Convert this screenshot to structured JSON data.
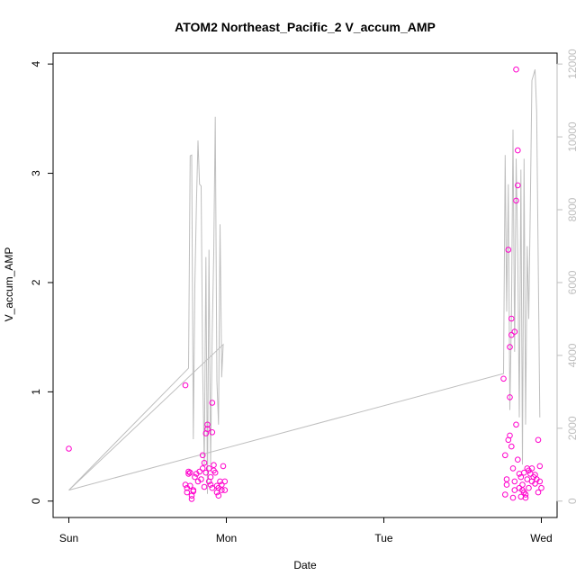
{
  "chart_data": {
    "type": "scatter",
    "title": "ATOM2 Northeast_Pacific_2 V_accum_AMP",
    "xlabel": "Date",
    "ylabel": "V_accum_AMP",
    "x_ticks": [
      "Sun",
      "Mon",
      "Tue",
      "Wed"
    ],
    "x_tick_values": [
      0,
      1,
      2,
      3
    ],
    "xlim": [
      -0.1,
      3.1
    ],
    "ylim": [
      -0.15,
      4.1
    ],
    "y_ticks": [
      0,
      1,
      2,
      3,
      4
    ],
    "y2lim": [
      -450,
      12300
    ],
    "y2_ticks": [
      0,
      2000,
      4000,
      6000,
      8000,
      10000,
      12000
    ],
    "grid": false,
    "colors": {
      "points": "#ff00cc",
      "line": "#bebebe",
      "right_axis": "#bebebe",
      "axes": "#000000"
    },
    "series": [
      {
        "kind": "points",
        "axis": "left",
        "x_unit": "days since Sun",
        "points": [
          [
            0.0,
            0.48
          ],
          [
            0.74,
            1.06
          ],
          [
            0.74,
            0.15
          ],
          [
            0.75,
            0.08
          ],
          [
            0.75,
            0.12
          ],
          [
            0.76,
            0.27
          ],
          [
            0.76,
            0.25
          ],
          [
            0.77,
            0.26
          ],
          [
            0.77,
            0.14
          ],
          [
            0.78,
            0.05
          ],
          [
            0.78,
            0.02
          ],
          [
            0.79,
            0.1
          ],
          [
            0.79,
            0.09
          ],
          [
            0.8,
            0.22
          ],
          [
            0.81,
            0.25
          ],
          [
            0.82,
            0.18
          ],
          [
            0.83,
            0.27
          ],
          [
            0.84,
            0.2
          ],
          [
            0.85,
            0.3
          ],
          [
            0.85,
            0.42
          ],
          [
            0.86,
            0.35
          ],
          [
            0.86,
            0.13
          ],
          [
            0.87,
            0.26
          ],
          [
            0.87,
            0.62
          ],
          [
            0.88,
            0.7
          ],
          [
            0.88,
            0.66
          ],
          [
            0.89,
            0.18
          ],
          [
            0.89,
            0.3
          ],
          [
            0.9,
            0.15
          ],
          [
            0.9,
            0.22
          ],
          [
            0.91,
            0.12
          ],
          [
            0.91,
            0.9
          ],
          [
            0.91,
            0.63
          ],
          [
            0.92,
            0.28
          ],
          [
            0.92,
            0.33
          ],
          [
            0.93,
            0.26
          ],
          [
            0.94,
            0.14
          ],
          [
            0.94,
            0.08
          ],
          [
            0.95,
            0.05
          ],
          [
            0.95,
            0.12
          ],
          [
            0.96,
            0.18
          ],
          [
            0.97,
            0.1
          ],
          [
            0.97,
            0.15
          ],
          [
            0.98,
            0.32
          ],
          [
            0.99,
            0.18
          ],
          [
            0.99,
            0.1
          ],
          [
            2.76,
            1.12
          ],
          [
            2.77,
            0.42
          ],
          [
            2.77,
            0.06
          ],
          [
            2.78,
            0.15
          ],
          [
            2.78,
            0.2
          ],
          [
            2.79,
            2.3
          ],
          [
            2.79,
            0.56
          ],
          [
            2.8,
            1.41
          ],
          [
            2.8,
            0.95
          ],
          [
            2.8,
            0.6
          ],
          [
            2.81,
            1.67
          ],
          [
            2.81,
            1.52
          ],
          [
            2.81,
            0.5
          ],
          [
            2.82,
            0.3
          ],
          [
            2.82,
            0.03
          ],
          [
            2.83,
            0.18
          ],
          [
            2.83,
            0.1
          ],
          [
            2.83,
            1.55
          ],
          [
            2.84,
            3.95
          ],
          [
            2.84,
            2.75
          ],
          [
            2.84,
            0.7
          ],
          [
            2.85,
            2.89
          ],
          [
            2.85,
            3.21
          ],
          [
            2.85,
            0.38
          ],
          [
            2.86,
            0.25
          ],
          [
            2.86,
            0.12
          ],
          [
            2.87,
            0.04
          ],
          [
            2.87,
            0.22
          ],
          [
            2.88,
            0.1
          ],
          [
            2.88,
            0.15
          ],
          [
            2.89,
            0.26
          ],
          [
            2.89,
            0.08
          ],
          [
            2.9,
            0.06
          ],
          [
            2.9,
            0.03
          ],
          [
            2.91,
            0.3
          ],
          [
            2.91,
            0.2
          ],
          [
            2.92,
            0.28
          ],
          [
            2.92,
            0.12
          ],
          [
            2.93,
            0.25
          ],
          [
            2.94,
            0.18
          ],
          [
            2.94,
            0.3
          ],
          [
            2.95,
            0.22
          ],
          [
            2.96,
            0.16
          ],
          [
            2.96,
            0.24
          ],
          [
            2.97,
            0.2
          ],
          [
            2.98,
            0.08
          ],
          [
            2.98,
            0.56
          ],
          [
            2.99,
            0.32
          ],
          [
            2.99,
            0.18
          ],
          [
            3.0,
            0.12
          ]
        ]
      },
      {
        "kind": "line",
        "axis": "right",
        "x_unit": "days since Sun",
        "points": [
          [
            0.0,
            300
          ],
          [
            0.76,
            3650
          ],
          [
            0.77,
            9480
          ],
          [
            0.78,
            9500
          ],
          [
            0.79,
            1700
          ],
          [
            0.8,
            5900
          ],
          [
            0.81,
            8200
          ],
          [
            0.82,
            9900
          ],
          [
            0.83,
            8700
          ],
          [
            0.84,
            8650
          ],
          [
            0.85,
            3600
          ],
          [
            0.86,
            1000
          ],
          [
            0.87,
            6700
          ],
          [
            0.88,
            200
          ],
          [
            0.89,
            6900
          ],
          [
            0.9,
            1000
          ],
          [
            0.91,
            4600
          ],
          [
            0.92,
            6800
          ],
          [
            0.93,
            10550
          ],
          [
            0.94,
            3300
          ],
          [
            0.95,
            2100
          ],
          [
            0.96,
            7600
          ],
          [
            0.97,
            3600
          ],
          [
            0.97,
            3400
          ],
          [
            0.98,
            4300
          ],
          [
            0.0,
            300
          ],
          [
            2.76,
            3500
          ],
          [
            2.77,
            9500
          ],
          [
            2.78,
            5200
          ],
          [
            2.79,
            8700
          ],
          [
            2.8,
            2500
          ],
          [
            2.81,
            5100
          ],
          [
            2.82,
            10200
          ],
          [
            2.83,
            4100
          ],
          [
            2.84,
            9400
          ],
          [
            2.85,
            6800
          ],
          [
            2.86,
            2300
          ],
          [
            2.87,
            9100
          ],
          [
            2.88,
            1000
          ],
          [
            2.89,
            9400
          ],
          [
            2.9,
            2100
          ],
          [
            2.91,
            7000
          ],
          [
            2.92,
            5000
          ],
          [
            2.93,
            8200
          ],
          [
            2.94,
            11550
          ],
          [
            2.95,
            11700
          ],
          [
            2.96,
            11850
          ],
          [
            2.97,
            10700
          ],
          [
            2.99,
            2300
          ]
        ]
      }
    ]
  }
}
